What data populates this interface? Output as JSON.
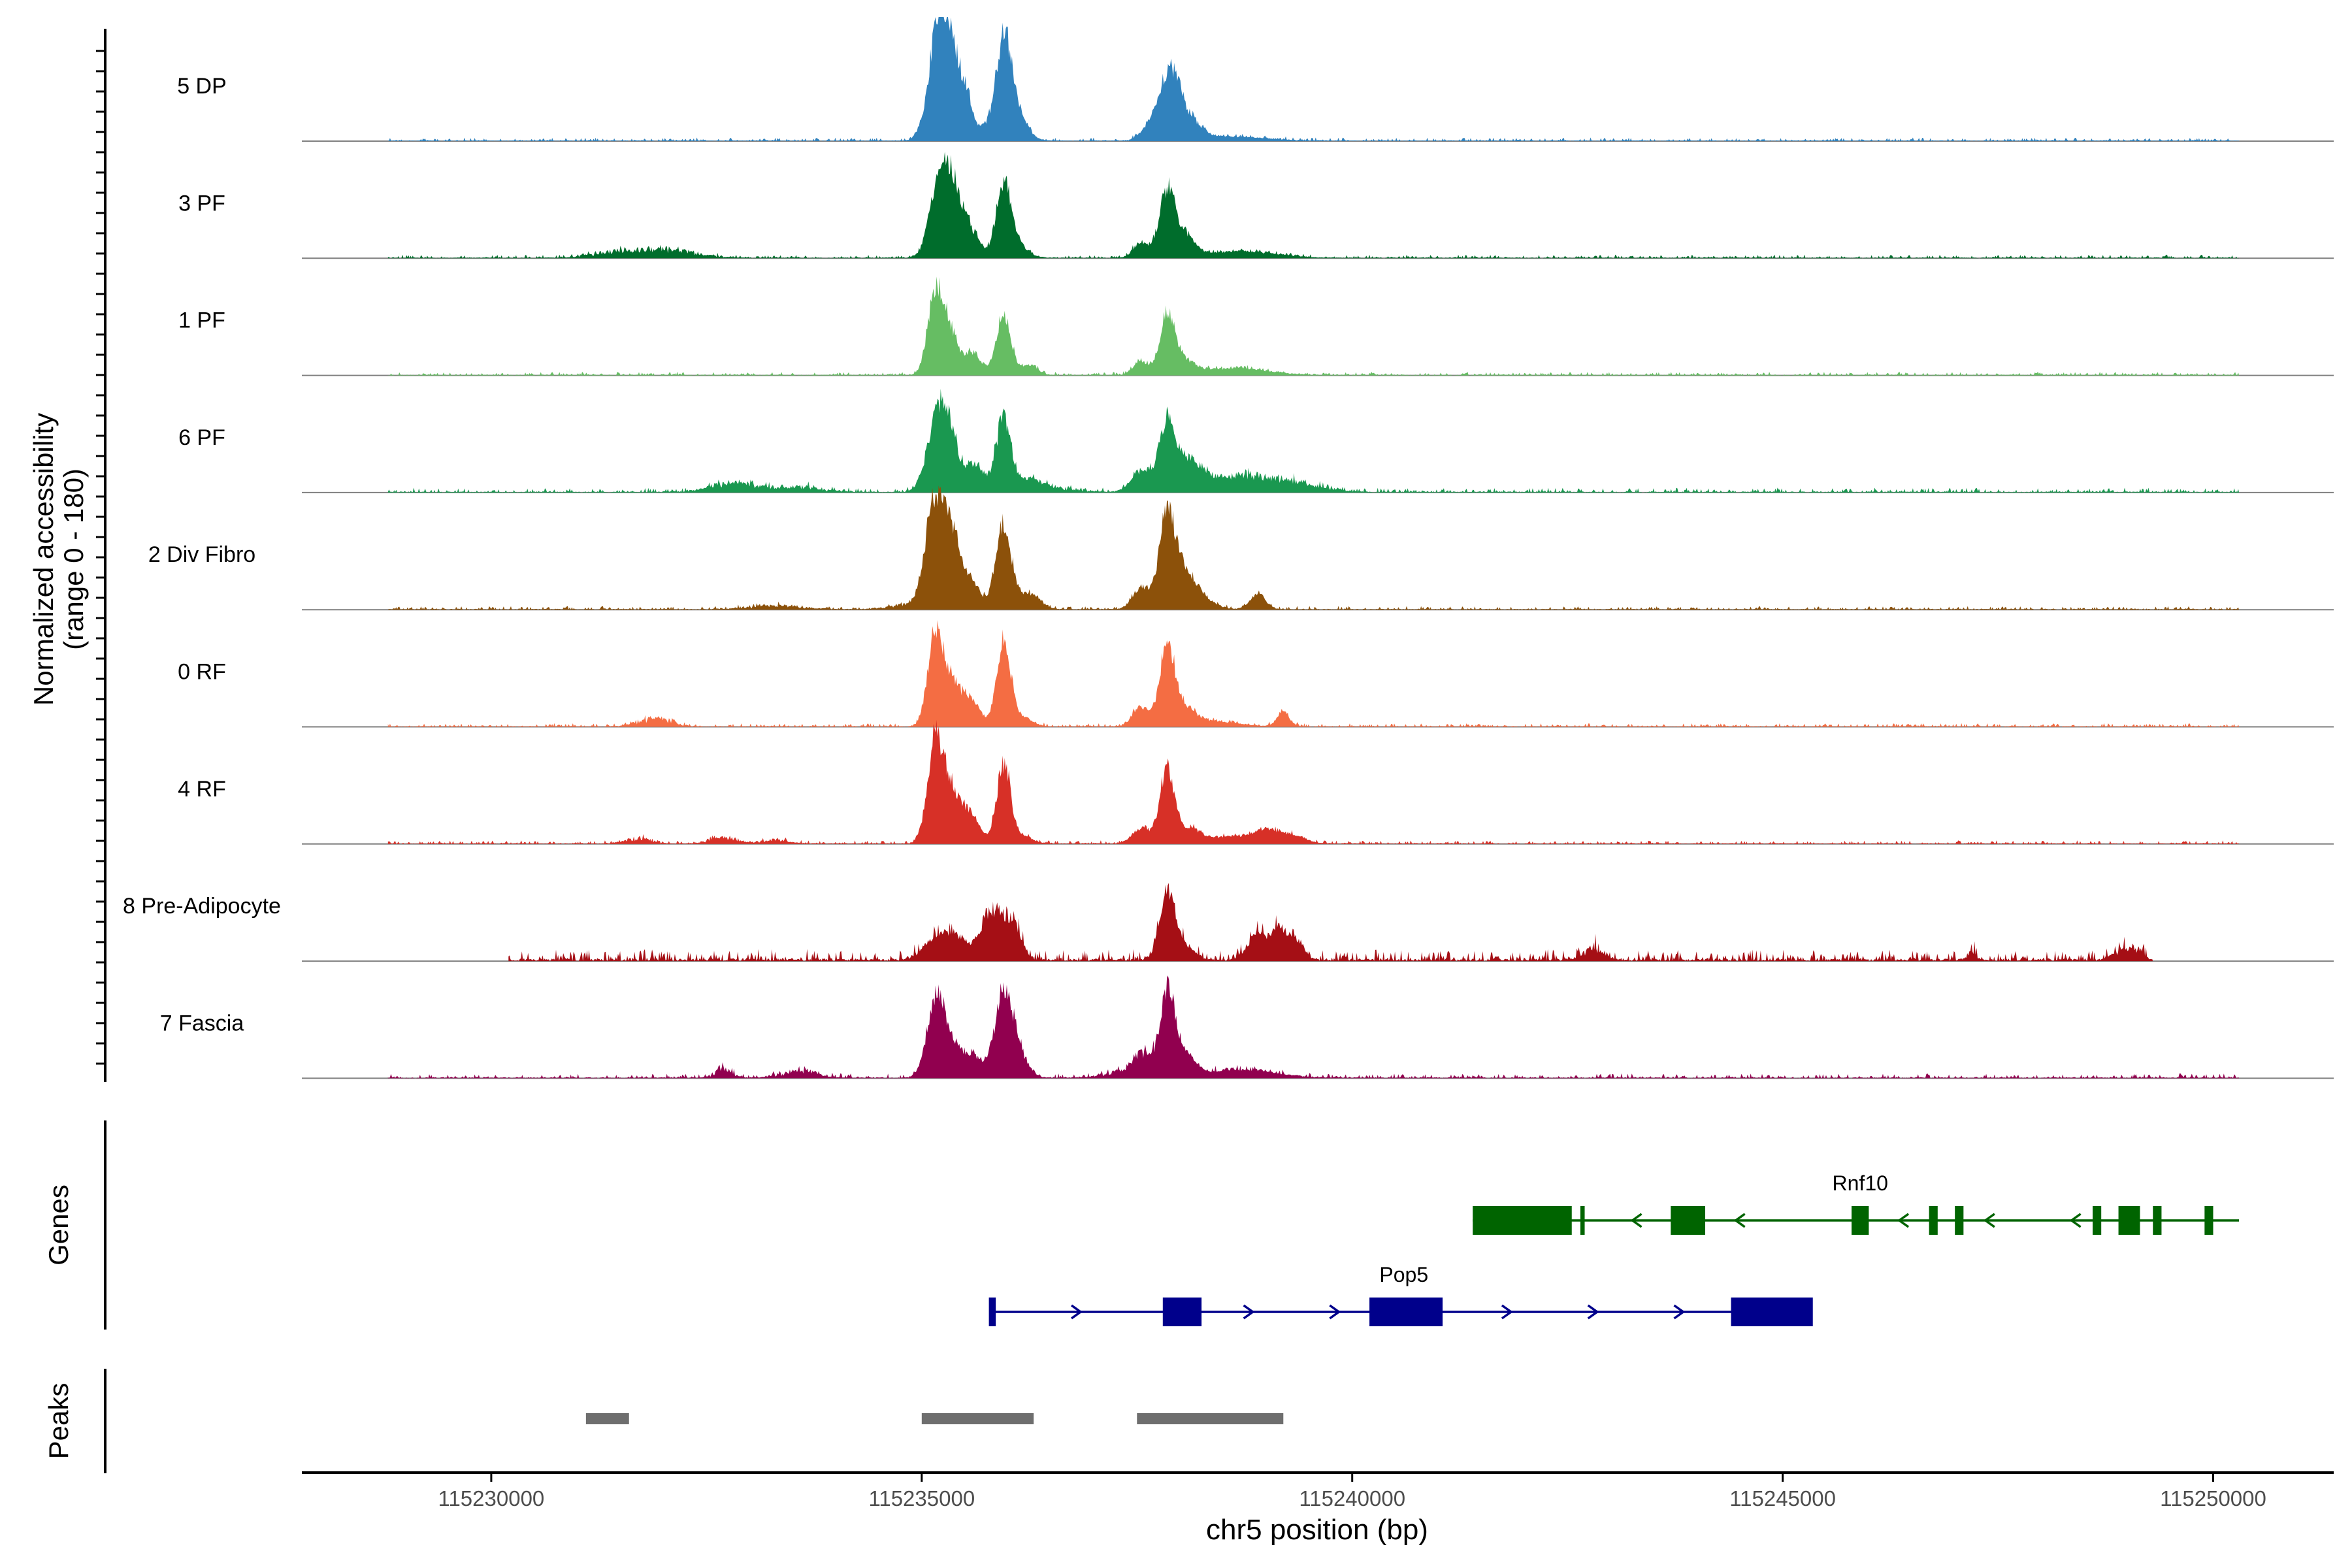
{
  "chart_data": {
    "type": "area",
    "title": "",
    "xlabel": "chr5 position (bp)",
    "ylabel_line1": "Normalized accessibility",
    "ylabel_line2": "(range 0 - 180)",
    "yrange": [
      0,
      180
    ],
    "xlim": [
      115227800,
      115251400
    ],
    "x_ticks": [
      115230000,
      115235000,
      115240000,
      115245000,
      115250000
    ],
    "x_tick_labels": [
      "115230000",
      "115235000",
      "115240000",
      "115245000",
      "115250000"
    ],
    "tracks": [
      {
        "name": "5 DP",
        "color": "#3182BD",
        "start": 115228800,
        "end": 115250300,
        "noise": 3,
        "extra_noise": [],
        "peaks": [
          [
            115235200,
            132,
            120
          ],
          [
            115235300,
            90,
            120
          ],
          [
            115235500,
            60,
            90
          ],
          [
            115235750,
            18,
            90
          ],
          [
            115235950,
            140,
            85
          ],
          [
            115236100,
            40,
            120
          ],
          [
            115237700,
            28,
            120
          ],
          [
            115237850,
            72,
            90
          ],
          [
            115237980,
            48,
            90
          ],
          [
            115238150,
            22,
            120
          ],
          [
            115238600,
            6,
            400
          ]
        ]
      },
      {
        "name": "3 PF",
        "color": "#006D2C",
        "start": 115228800,
        "end": 115250300,
        "noise": 3,
        "extra_noise": [
          [
            115231500,
            10,
            300
          ],
          [
            115232100,
            12,
            300
          ]
        ],
        "peaks": [
          [
            115235200,
            95,
            110
          ],
          [
            115235350,
            80,
            120
          ],
          [
            115235550,
            35,
            120
          ],
          [
            115235950,
            105,
            85
          ],
          [
            115236100,
            20,
            120
          ],
          [
            115237550,
            22,
            90
          ],
          [
            115237850,
            95,
            90
          ],
          [
            115238050,
            30,
            120
          ],
          [
            115238700,
            10,
            400
          ]
        ]
      },
      {
        "name": "1 PF",
        "color": "#66BD63",
        "start": 115228800,
        "end": 115250300,
        "noise": 3,
        "extra_noise": [],
        "peaks": [
          [
            115235150,
            100,
            85
          ],
          [
            115235300,
            70,
            110
          ],
          [
            115235600,
            30,
            100
          ],
          [
            115235950,
            88,
            85
          ],
          [
            115236250,
            15,
            90
          ],
          [
            115237550,
            20,
            90
          ],
          [
            115237850,
            85,
            85
          ],
          [
            115238050,
            18,
            120
          ],
          [
            115238600,
            10,
            400
          ]
        ]
      },
      {
        "name": "6 PF",
        "color": "#1A9850",
        "start": 115228800,
        "end": 115250300,
        "noise": 4,
        "extra_noise": [
          [
            115232800,
            14,
            250
          ],
          [
            115233500,
            8,
            300
          ],
          [
            115236400,
            8,
            300
          ],
          [
            115238800,
            14,
            400
          ],
          [
            115239400,
            10,
            300
          ]
        ],
        "peaks": [
          [
            115235150,
            80,
            110
          ],
          [
            115235300,
            90,
            100
          ],
          [
            115235600,
            40,
            120
          ],
          [
            115235950,
            105,
            85
          ],
          [
            115236250,
            15,
            120
          ],
          [
            115237550,
            30,
            120
          ],
          [
            115237850,
            100,
            90
          ],
          [
            115238100,
            40,
            150
          ],
          [
            115238600,
            12,
            400
          ]
        ]
      },
      {
        "name": "2 Div Fibro",
        "color": "#8C510A",
        "start": 115228800,
        "end": 115250300,
        "noise": 3,
        "extra_noise": [
          [
            115233300,
            6,
            300
          ],
          [
            115234900,
            8,
            250
          ]
        ],
        "peaks": [
          [
            115235150,
            140,
            110
          ],
          [
            115235350,
            100,
            120
          ],
          [
            115235600,
            30,
            100
          ],
          [
            115235950,
            125,
            90
          ],
          [
            115236250,
            22,
            120
          ],
          [
            115237550,
            32,
            100
          ],
          [
            115237850,
            135,
            90
          ],
          [
            115238050,
            50,
            120
          ],
          [
            115238250,
            15,
            150
          ],
          [
            115238900,
            22,
            90
          ]
        ]
      },
      {
        "name": "0 RF",
        "color": "#F46D43",
        "start": 115228800,
        "end": 115250300,
        "noise": 3,
        "extra_noise": [
          [
            115231800,
            8,
            150
          ],
          [
            115232000,
            8,
            150
          ]
        ],
        "peaks": [
          [
            115235150,
            110,
            85
          ],
          [
            115235300,
            65,
            110
          ],
          [
            115235550,
            40,
            120
          ],
          [
            115235950,
            125,
            80
          ],
          [
            115236150,
            14,
            120
          ],
          [
            115237550,
            28,
            100
          ],
          [
            115237850,
            115,
            85
          ],
          [
            115238050,
            25,
            120
          ],
          [
            115238350,
            8,
            300
          ],
          [
            115239200,
            22,
            70
          ]
        ]
      },
      {
        "name": "4 RF",
        "color": "#D73027",
        "start": 115228800,
        "end": 115250300,
        "noise": 3,
        "extra_noise": [
          [
            115231700,
            8,
            150
          ],
          [
            115232700,
            10,
            150
          ],
          [
            115233300,
            6,
            150
          ]
        ],
        "peaks": [
          [
            115235150,
            120,
            90
          ],
          [
            115235300,
            75,
            120
          ],
          [
            115235550,
            40,
            120
          ],
          [
            115235950,
            112,
            80
          ],
          [
            115236150,
            12,
            120
          ],
          [
            115237550,
            22,
            100
          ],
          [
            115237850,
            105,
            85
          ],
          [
            115238100,
            18,
            120
          ],
          [
            115238600,
            10,
            400
          ],
          [
            115239000,
            14,
            150
          ],
          [
            115239300,
            10,
            150
          ]
        ]
      },
      {
        "name": "8 Pre-Adipocyte",
        "color": "#A50F15",
        "start": 115230200,
        "end": 115249300,
        "noise": 10,
        "extra_noise": [
          [
            115242800,
            18,
            120
          ],
          [
            115247200,
            10,
            60
          ],
          [
            115248900,
            16,
            80
          ],
          [
            115249100,
            18,
            80
          ]
        ],
        "peaks": [
          [
            115235150,
            25,
            150
          ],
          [
            115235400,
            30,
            150
          ],
          [
            115235800,
            70,
            110
          ],
          [
            115236050,
            55,
            100
          ],
          [
            115237850,
            102,
            85
          ],
          [
            115238050,
            20,
            120
          ],
          [
            115238900,
            35,
            110
          ],
          [
            115239150,
            42,
            100
          ],
          [
            115239350,
            25,
            90
          ]
        ]
      },
      {
        "name": "7 Fascia",
        "color": "#91004F",
        "start": 115228800,
        "end": 115250300,
        "noise": 4,
        "extra_noise": [
          [
            115232700,
            14,
            100
          ],
          [
            115233600,
            10,
            200
          ],
          [
            115237500,
            12,
            300
          ]
        ],
        "peaks": [
          [
            115235150,
            90,
            100
          ],
          [
            115235300,
            55,
            120
          ],
          [
            115235600,
            30,
            120
          ],
          [
            115235950,
            115,
            100
          ],
          [
            115236100,
            35,
            120
          ],
          [
            115237550,
            25,
            100
          ],
          [
            115237850,
            112,
            90
          ],
          [
            115238050,
            30,
            120
          ],
          [
            115238700,
            12,
            400
          ]
        ]
      }
    ],
    "genes": [
      {
        "name": "Rnf10",
        "strand": "-",
        "color": "#006400",
        "start": 115241400,
        "end": 115250300,
        "exons": [
          [
            115241400,
            115242550,
            1
          ],
          [
            115242650,
            115242700,
            1
          ],
          [
            115243700,
            115244100,
            1
          ],
          [
            115245800,
            115246000,
            1
          ],
          [
            115246700,
            115246800,
            1
          ],
          [
            115247000,
            115247100,
            1
          ],
          [
            115248600,
            115248700,
            1
          ],
          [
            115248900,
            115249150,
            1
          ],
          [
            115249300,
            115249400,
            1
          ],
          [
            115249900,
            115250000,
            1
          ]
        ],
        "arrows": [
          115243300,
          115244500,
          115246400,
          115247400,
          115248400
        ]
      },
      {
        "name": "Pop5",
        "strand": "+",
        "color": "#00008B",
        "start": 115235800,
        "end": 115245300,
        "exons": [
          [
            115235780,
            115235860,
            1
          ],
          [
            115237800,
            115238250,
            1
          ],
          [
            115240200,
            115241050,
            1
          ],
          [
            115244400,
            115245350,
            1
          ]
        ],
        "arrows": [
          115236800,
          115238800,
          115239800,
          115241800,
          115242800,
          115243800
        ]
      }
    ],
    "peaks_ranges": [
      [
        115231100,
        115231600
      ],
      [
        115235000,
        115236300
      ],
      [
        115237500,
        115239200
      ]
    ],
    "panel_labels": {
      "genes": "Genes",
      "peaks": "Peaks"
    }
  }
}
